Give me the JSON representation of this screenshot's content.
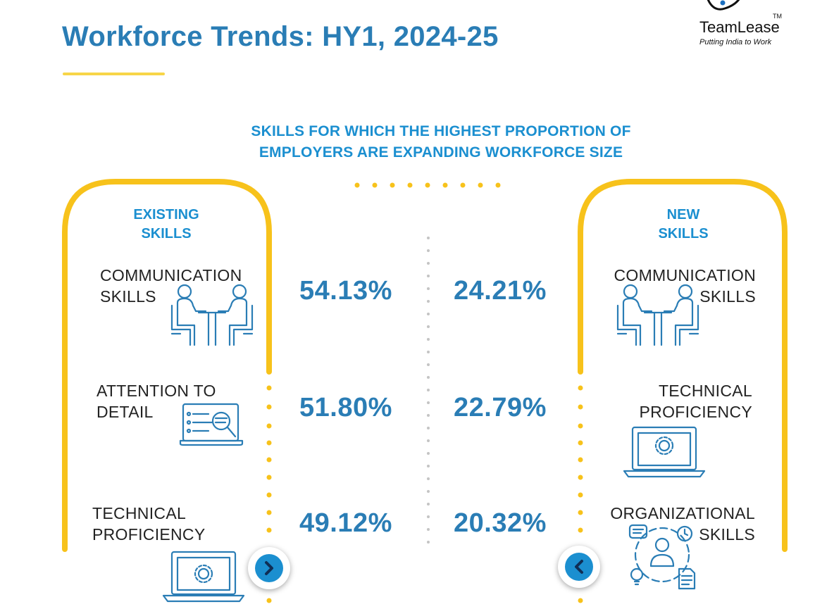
{
  "header": {
    "title": "Workforce Trends: HY1, 2024-25",
    "logo_name": "TeamLease",
    "logo_tm": "TM",
    "logo_tagline": "Putting India to Work"
  },
  "subtitle_line1": "SKILLS FOR WHICH THE HIGHEST PROPORTION OF",
  "subtitle_line2": "EMPLOYERS ARE EXPANDING WORKFORCE SIZE",
  "existing": {
    "title_line1": "EXISTING",
    "title_line2": "SKILLS",
    "items": [
      {
        "line1": "COMMUNICATION",
        "line2": "SKILLS",
        "value": "54.13%",
        "icon": "meeting-icon"
      },
      {
        "line1": "ATTENTION TO",
        "line2": "DETAIL",
        "value": "51.80%",
        "icon": "magnifier-document-icon"
      },
      {
        "line1": "TECHNICAL",
        "line2": "PROFICIENCY",
        "value": "49.12%",
        "icon": "laptop-gear-icon"
      }
    ]
  },
  "new": {
    "title_line1": "NEW",
    "title_line2": "SKILLS",
    "items": [
      {
        "line1": "COMMUNICATION",
        "line2": "SKILLS",
        "value": "24.21%",
        "icon": "meeting-icon"
      },
      {
        "line1": "TECHNICAL",
        "line2": "PROFICIENCY",
        "value": "22.79%",
        "icon": "laptop-gear-icon"
      },
      {
        "line1": "ORGANIZATIONAL",
        "line2": "SKILLS",
        "value": "20.32%",
        "icon": "organization-network-icon"
      }
    ]
  },
  "colors": {
    "accent_blue": "#2a7db5",
    "heading_blue": "#1b8fd0",
    "frame_yellow": "#f7c21b",
    "divider_gray": "#bdbdbd"
  },
  "nav": {
    "next_icon": "chevron-right-icon",
    "prev_icon": "chevron-left-icon"
  }
}
